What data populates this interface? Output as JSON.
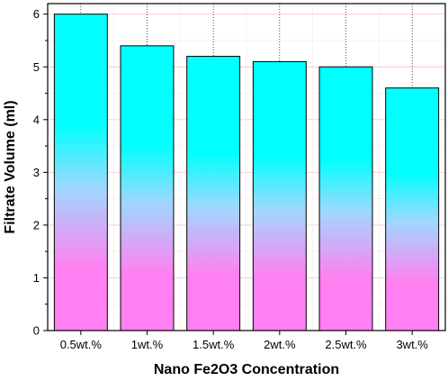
{
  "chart_data": {
    "type": "bar",
    "categories": [
      "0.5wt.%",
      "1wt.%",
      "1.5wt.%",
      "2wt.%",
      "2.5wt.%",
      "3wt.%"
    ],
    "values": [
      6.0,
      5.4,
      5.2,
      5.1,
      5.0,
      4.6
    ],
    "xlabel": "Nano Fe2O3 Concentration",
    "ylabel": "Filtrate Volume (ml)",
    "ylim": [
      0,
      6.2
    ],
    "yticks": [
      0,
      1,
      2,
      3,
      4,
      5,
      6
    ],
    "grid": true,
    "bar_gradient": {
      "top": "#00ffff",
      "bottom": "#ff80f0"
    },
    "colors": {
      "minor_grid": "#ffc8c8",
      "major_grid": "#d2d2d2",
      "axis": "#000000"
    }
  }
}
